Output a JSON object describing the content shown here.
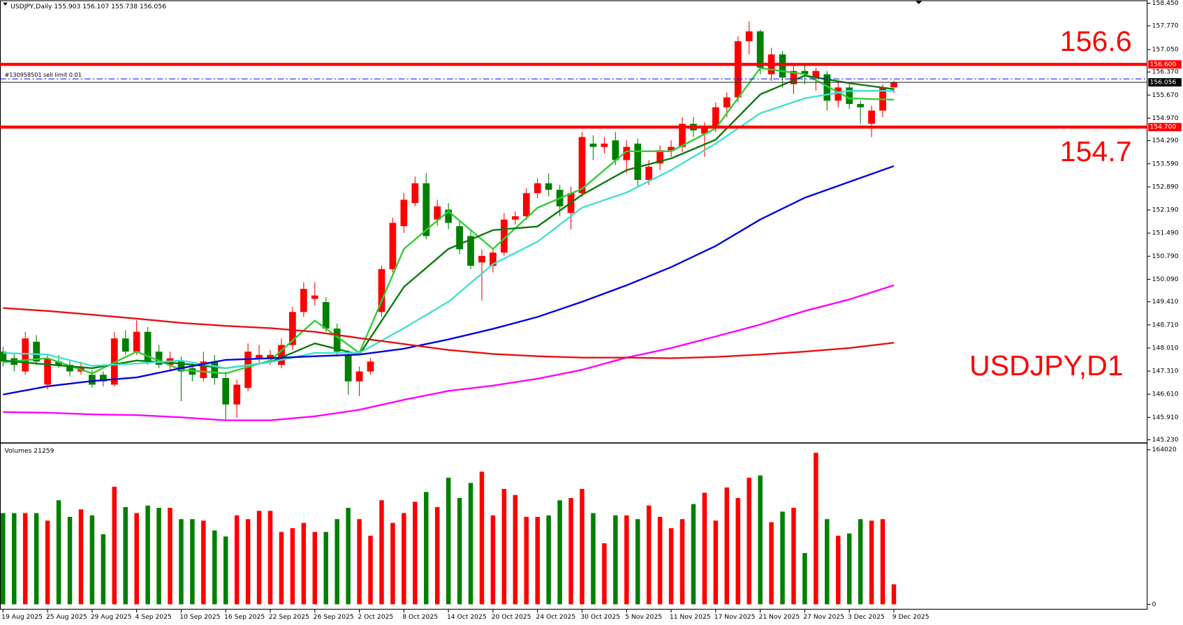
{
  "chart_data": {
    "type": "candlestick",
    "symbol_period": "USDJPY,Daily",
    "watermark": "USDJPY,D1",
    "up_color": "#ff0000",
    "down_color": "#008000",
    "ylim": [
      145.18,
      158.54
    ],
    "yticks": [
      {
        "value": 158.45,
        "label": "158.450"
      },
      {
        "value": 157.77,
        "label": "157.770"
      },
      {
        "value": 157.05,
        "label": "157.050"
      },
      {
        "value": 156.37,
        "label": "156.370"
      },
      {
        "value": 155.67,
        "label": "155.670"
      },
      {
        "value": 154.97,
        "label": "154.970"
      },
      {
        "value": 154.29,
        "label": "154.290"
      },
      {
        "value": 153.59,
        "label": "153.590"
      },
      {
        "value": 152.89,
        "label": "152.890"
      },
      {
        "value": 152.19,
        "label": "152.190"
      },
      {
        "value": 151.49,
        "label": "151.490"
      },
      {
        "value": 150.79,
        "label": "150.790"
      },
      {
        "value": 150.09,
        "label": "150.090"
      },
      {
        "value": 149.41,
        "label": "149.410"
      },
      {
        "value": 148.71,
        "label": "148.710"
      },
      {
        "value": 148.01,
        "label": "148.010"
      },
      {
        "value": 147.31,
        "label": "147.310"
      },
      {
        "value": 146.61,
        "label": "146.610"
      },
      {
        "value": 145.91,
        "label": "145.910"
      },
      {
        "value": 145.23,
        "label": "145.230"
      }
    ],
    "categories": [
      "19 Aug 2025",
      null,
      null,
      null,
      "25 Aug 2025",
      null,
      null,
      null,
      "29 Aug 2025",
      null,
      null,
      null,
      "4 Sep 2025",
      null,
      null,
      null,
      "10 Sep 2025",
      null,
      null,
      null,
      "16 Sep 2025",
      null,
      null,
      null,
      "22 Sep 2025",
      null,
      null,
      null,
      "26 Sep 2025",
      null,
      null,
      null,
      "2 Oct 2025",
      null,
      null,
      null,
      "8 Oct 2025",
      null,
      null,
      null,
      "14 Oct 2025",
      null,
      null,
      null,
      "20 Oct 2025",
      null,
      null,
      null,
      "24 Oct 2025",
      null,
      null,
      null,
      "30 Oct 2025",
      null,
      null,
      null,
      "5 Nov 2025",
      null,
      null,
      null,
      "11 Nov 2025",
      null,
      null,
      null,
      "17 Nov 2025",
      null,
      null,
      null,
      "21 Nov 2025",
      null,
      null,
      null,
      "27 Nov 2025",
      null,
      null,
      null,
      "3 Dec 2025",
      null,
      null,
      null,
      "9 Dec 2025"
    ],
    "ohlc": [
      [
        147.9,
        148.05,
        147.45,
        147.6
      ],
      [
        147.7,
        147.85,
        147.3,
        147.5
      ],
      [
        147.3,
        148.5,
        147.2,
        148.3
      ],
      [
        148.2,
        148.4,
        147.5,
        147.6
      ],
      [
        146.9,
        147.8,
        146.75,
        147.7
      ],
      [
        147.6,
        147.8,
        147.4,
        147.5
      ],
      [
        147.5,
        147.65,
        147.15,
        147.3
      ],
      [
        147.3,
        147.6,
        147.2,
        147.45
      ],
      [
        147.2,
        147.35,
        146.8,
        146.9
      ],
      [
        147.2,
        147.3,
        146.85,
        147.0
      ],
      [
        146.9,
        148.5,
        146.85,
        148.3
      ],
      [
        148.3,
        148.55,
        147.8,
        147.9
      ],
      [
        147.9,
        148.85,
        147.8,
        148.5
      ],
      [
        148.5,
        148.65,
        147.5,
        147.6
      ],
      [
        147.9,
        148.1,
        147.4,
        147.5
      ],
      [
        147.5,
        147.9,
        147.3,
        147.7
      ],
      [
        147.6,
        147.75,
        146.4,
        147.3
      ],
      [
        147.4,
        147.55,
        147.0,
        147.2
      ],
      [
        147.1,
        147.9,
        147.0,
        147.6
      ],
      [
        147.6,
        147.8,
        146.9,
        147.1
      ],
      [
        147.1,
        147.3,
        145.85,
        146.3
      ],
      [
        146.3,
        147.05,
        145.9,
        146.9
      ],
      [
        146.8,
        148.15,
        146.7,
        147.9
      ],
      [
        147.7,
        148.1,
        147.55,
        147.8
      ],
      [
        147.7,
        147.95,
        147.5,
        147.8
      ],
      [
        147.5,
        148.3,
        147.4,
        148.1
      ],
      [
        148.1,
        149.25,
        147.95,
        149.1
      ],
      [
        149.1,
        150.0,
        148.95,
        149.8
      ],
      [
        149.5,
        150.0,
        149.3,
        149.6
      ],
      [
        149.4,
        149.55,
        148.5,
        148.6
      ],
      [
        148.6,
        148.75,
        147.75,
        147.9
      ],
      [
        147.8,
        147.95,
        146.6,
        147.0
      ],
      [
        147.0,
        147.45,
        146.55,
        147.3
      ],
      [
        147.3,
        147.7,
        147.2,
        147.6
      ],
      [
        149.1,
        150.5,
        148.95,
        150.4
      ],
      [
        150.4,
        151.95,
        150.3,
        151.8
      ],
      [
        151.7,
        152.7,
        151.5,
        152.5
      ],
      [
        152.4,
        153.2,
        152.3,
        153.0
      ],
      [
        153.0,
        153.3,
        151.3,
        151.4
      ],
      [
        151.9,
        152.5,
        151.7,
        152.3
      ],
      [
        152.2,
        152.4,
        151.6,
        151.8
      ],
      [
        151.7,
        151.85,
        150.85,
        151.0
      ],
      [
        151.4,
        151.55,
        150.4,
        150.5
      ],
      [
        150.6,
        151.0,
        149.45,
        150.8
      ],
      [
        150.5,
        151.0,
        150.3,
        150.9
      ],
      [
        150.9,
        152.1,
        150.8,
        151.9
      ],
      [
        151.9,
        152.15,
        151.75,
        152.0
      ],
      [
        152.0,
        152.85,
        151.9,
        152.7
      ],
      [
        152.7,
        153.15,
        152.55,
        153.0
      ],
      [
        153.0,
        153.3,
        152.6,
        152.8
      ],
      [
        152.8,
        152.95,
        152.0,
        152.3
      ],
      [
        152.1,
        152.9,
        151.6,
        152.7
      ],
      [
        152.7,
        154.55,
        152.6,
        154.4
      ],
      [
        154.2,
        154.45,
        153.7,
        154.1
      ],
      [
        154.1,
        154.4,
        153.9,
        154.2
      ],
      [
        154.3,
        154.55,
        153.55,
        153.7
      ],
      [
        153.7,
        154.3,
        153.3,
        154.1
      ],
      [
        154.2,
        154.35,
        152.9,
        153.1
      ],
      [
        153.1,
        153.7,
        152.95,
        153.5
      ],
      [
        153.6,
        154.15,
        153.4,
        154.0
      ],
      [
        154.0,
        154.3,
        153.8,
        154.1
      ],
      [
        154.1,
        155.0,
        153.95,
        154.8
      ],
      [
        154.8,
        155.0,
        154.4,
        154.6
      ],
      [
        154.5,
        154.85,
        153.8,
        154.7
      ],
      [
        154.7,
        155.45,
        154.55,
        155.3
      ],
      [
        155.3,
        155.75,
        155.0,
        155.6
      ],
      [
        155.6,
        157.45,
        155.45,
        157.3
      ],
      [
        157.3,
        157.9,
        156.9,
        157.6
      ],
      [
        157.6,
        157.65,
        156.3,
        156.5
      ],
      [
        156.3,
        157.1,
        156.1,
        156.9
      ],
      [
        156.9,
        157.0,
        155.9,
        156.2
      ],
      [
        156.0,
        156.6,
        155.7,
        156.4
      ],
      [
        156.4,
        156.6,
        156.0,
        156.3
      ],
      [
        156.2,
        156.5,
        155.8,
        156.4
      ],
      [
        156.3,
        156.4,
        155.2,
        155.5
      ],
      [
        155.5,
        156.1,
        155.3,
        155.9
      ],
      [
        155.9,
        156.0,
        155.25,
        155.4
      ],
      [
        155.4,
        155.5,
        154.8,
        155.3
      ],
      [
        154.8,
        155.35,
        154.4,
        155.2
      ],
      [
        155.2,
        156.0,
        155.0,
        155.9
      ],
      [
        155.903,
        156.107,
        155.738,
        156.056
      ]
    ],
    "moving_averages": [
      {
        "color": "#33cc33",
        "values": [
          147.58,
          147.7,
          147.24,
          147.9,
          147.35,
          147.24,
          147.63,
          148.84,
          147.86,
          151.01,
          152.15,
          151.01,
          152.26,
          152.83,
          153.97,
          153.97,
          154.66,
          156.49,
          156.3,
          155.57,
          155.53
        ]
      },
      {
        "color": "#0a7a0a",
        "values": [
          147.63,
          147.51,
          147.4,
          147.63,
          147.54,
          147.4,
          147.58,
          148.15,
          147.81,
          149.86,
          151.01,
          151.58,
          151.69,
          152.65,
          153.4,
          153.75,
          154.32,
          155.69,
          156.26,
          156.03,
          155.85
        ]
      },
      {
        "color": "#40e0d0",
        "values": [
          147.86,
          147.81,
          147.47,
          147.54,
          147.63,
          147.4,
          147.58,
          147.86,
          147.86,
          148.61,
          149.41,
          150.55,
          151.23,
          152.26,
          152.72,
          153.4,
          154.2,
          155.12,
          155.57,
          155.8,
          155.8
        ]
      },
      {
        "color": "#0000dd",
        "values": [
          146.6,
          146.85,
          147.01,
          147.12,
          147.4,
          147.65,
          147.7,
          147.76,
          147.81,
          147.99,
          148.27,
          148.59,
          148.95,
          149.41,
          149.91,
          150.46,
          151.1,
          151.9,
          152.56,
          153.04,
          153.52
        ]
      },
      {
        "color": "#ff00ff",
        "values": [
          146.07,
          146.05,
          146.0,
          145.98,
          145.91,
          145.82,
          145.82,
          145.94,
          146.14,
          146.44,
          146.71,
          146.87,
          147.08,
          147.35,
          147.72,
          148.01,
          148.36,
          148.72,
          149.13,
          149.48,
          149.91
        ]
      },
      {
        "color": "#e81010",
        "values": [
          149.22,
          149.13,
          149.02,
          148.9,
          148.77,
          148.68,
          148.61,
          148.5,
          148.31,
          148.13,
          147.95,
          147.83,
          147.76,
          147.72,
          147.72,
          147.7,
          147.74,
          147.81,
          147.9,
          148.01,
          148.17
        ]
      }
    ],
    "levels": [
      {
        "value": 156.6,
        "label": "156.600",
        "color": "#ff0000"
      },
      {
        "value": 154.7,
        "label": "154.700",
        "color": "#ff0000"
      }
    ],
    "order": {
      "text": "#130958501 sell limit 0.01",
      "price": 156.16,
      "color": "#0000ff"
    },
    "volume": {
      "title": "Volumes",
      "ylim": [
        0,
        164020
      ],
      "yticks": [
        0,
        164020
      ],
      "values": [
        96800,
        96800,
        96800,
        96800,
        88800,
        110400,
        92800,
        100800,
        94400,
        74400,
        124800,
        103200,
        96800,
        104800,
        102400,
        102400,
        90400,
        90400,
        88800,
        78400,
        72000,
        94400,
        90400,
        99200,
        99200,
        76800,
        80800,
        86400,
        76800,
        76800,
        90400,
        102400,
        90400,
        72800,
        110400,
        86400,
        96800,
        108800,
        119200,
        103200,
        134400,
        112800,
        128800,
        140800,
        94400,
        122400,
        116000,
        92800,
        92800,
        94400,
        110400,
        112800,
        122400,
        96800,
        64800,
        94400,
        94400,
        90400,
        104800,
        92800,
        80800,
        90400,
        106400,
        118400,
        88800,
        124000,
        112800,
        134400,
        136800,
        87200,
        98400,
        102400,
        54400,
        160800,
        90400,
        72800,
        75200,
        90400,
        88800,
        90400,
        21259
      ]
    }
  }
}
